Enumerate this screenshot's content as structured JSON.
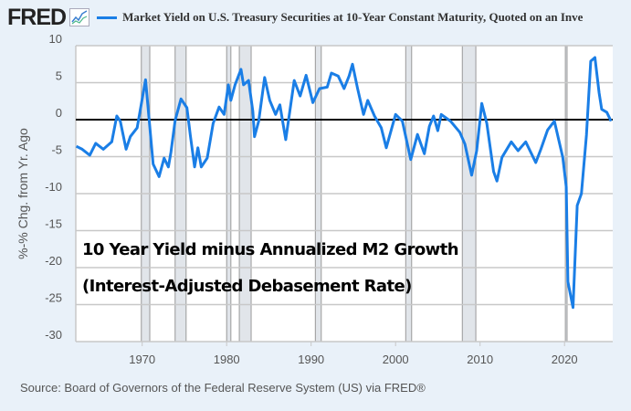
{
  "header": {
    "logo": "FRED",
    "logo_icon": "line-chart-icon",
    "series_title": "Market Yield on U.S. Treasury Securities at 10-Year Constant Maturity, Quoted on an Inve"
  },
  "annotation": {
    "line1": "10 Year Yield minus Annualized M2 Growth",
    "line2": "(Interest-Adjusted Debasement Rate)"
  },
  "source": "Source: Board of Governors of the Federal Reserve System (US) via FRED®",
  "colors": {
    "series": "#1a7ee6",
    "recession": "#e1e5ea",
    "zero_line": "#000000",
    "background": "#e9f1f9"
  },
  "chart_data": {
    "type": "line",
    "ylabel": "%-% Chg. from Yr. Ago",
    "xlim": [
      1962,
      2025.7
    ],
    "ylim": [
      -30,
      10
    ],
    "yticks": [
      "10",
      "5",
      "0",
      "-5",
      "-10",
      "-15",
      "-20",
      "-25",
      "-30"
    ],
    "xticks": [
      "1970",
      "1980",
      "1990",
      "2000",
      "2010",
      "2020"
    ],
    "grid": true,
    "reference_line": 0,
    "recessions": [
      [
        1969.9,
        1970.9
      ],
      [
        1973.9,
        1975.2
      ],
      [
        1980.0,
        1980.5
      ],
      [
        1981.5,
        1982.9
      ],
      [
        1990.5,
        1991.2
      ],
      [
        2001.2,
        2001.9
      ],
      [
        2007.9,
        2009.5
      ],
      [
        2020.1,
        2020.3
      ]
    ],
    "series": [
      {
        "x": [
          1962.2,
          1962.9,
          1963.8,
          1964.5,
          1965.4,
          1966.4,
          1967.0,
          1967.4,
          1968.1,
          1968.6,
          1969.4,
          1970.4,
          1971.3,
          1972.0,
          1972.6,
          1973.1,
          1973.4,
          1973.9,
          1974.6,
          1975.3,
          1975.7,
          1976.2,
          1976.6,
          1977.0,
          1977.7,
          1978.4,
          1979.1,
          1979.7,
          1980.2,
          1980.5,
          1981.0,
          1981.7,
          1982.0,
          1982.6,
          1983.1,
          1983.3,
          1983.8,
          1984.5,
          1985.1,
          1985.8,
          1986.3,
          1987.0,
          1988.0,
          1988.7,
          1989.4,
          1990.2,
          1991.0,
          1991.9,
          1992.4,
          1993.2,
          1993.9,
          1994.5,
          1994.9,
          1995.5,
          1996.2,
          1996.7,
          1997.5,
          1998.3,
          1998.9,
          2000.0,
          2000.8,
          2001.8,
          2002.6,
          2003.4,
          2004.0,
          2004.5,
          2005.0,
          2005.4,
          2006.5,
          2007.6,
          2008.2,
          2009.0,
          2009.6,
          2010.2,
          2010.8,
          2011.6,
          2012.0,
          2012.6,
          2013.7,
          2014.5,
          2015.4,
          2016.6,
          2017.2,
          2018.0,
          2018.8,
          2019.8,
          2020.2,
          2020.4,
          2021.0,
          2021.5,
          2022.0,
          2022.6,
          2023.1,
          2023.6,
          2024.1,
          2024.4,
          2025.0,
          2025.5
        ],
        "y": [
          -3.6,
          -4.0,
          -4.8,
          -3.2,
          -4.0,
          -3.0,
          0.5,
          -0.2,
          -4.0,
          -2.3,
          -1.1,
          5.4,
          -6.0,
          -7.7,
          -5.2,
          -6.4,
          -4.4,
          -0.1,
          2.8,
          1.6,
          -2.1,
          -6.4,
          -3.8,
          -6.4,
          -5.2,
          -0.5,
          1.7,
          0.7,
          4.7,
          2.6,
          4.7,
          6.8,
          4.7,
          5.3,
          1.1,
          -2.3,
          -0.2,
          5.7,
          2.6,
          0.7,
          2.0,
          -2.7,
          5.3,
          3.2,
          6.0,
          2.3,
          4.2,
          4.4,
          6.3,
          5.9,
          4.2,
          5.9,
          7.5,
          4.2,
          0.7,
          2.6,
          0.5,
          -1.1,
          -3.8,
          0.7,
          -0.2,
          -5.4,
          -2.0,
          -4.6,
          -0.9,
          0.5,
          -1.5,
          0.7,
          -0.2,
          -1.7,
          -3.3,
          -7.5,
          -4.2,
          2.2,
          -0.5,
          -7.0,
          -8.3,
          -5.1,
          -3.0,
          -4.2,
          -3.0,
          -5.8,
          -4.0,
          -1.4,
          -0.2,
          -5.1,
          -9.1,
          -21.9,
          -25.4,
          -11.6,
          -10.0,
          -2.1,
          7.9,
          8.4,
          3.6,
          1.4,
          1.0,
          -0.2
        ]
      }
    ]
  }
}
